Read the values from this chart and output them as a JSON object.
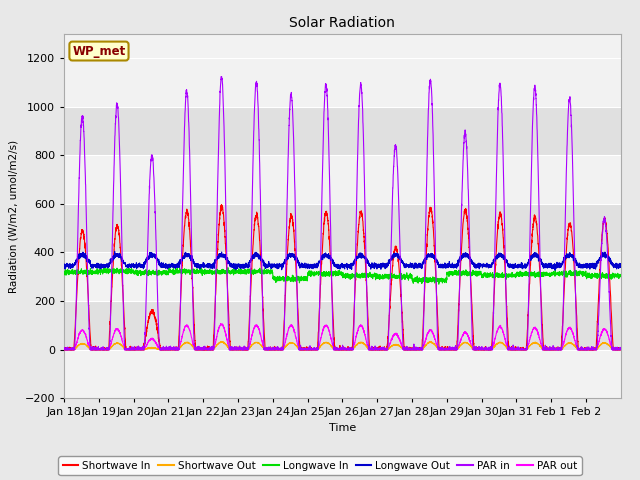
{
  "title": "Solar Radiation",
  "ylabel": "Radiation (W/m2, umol/m2/s)",
  "xlabel": "Time",
  "ylim": [
    -200,
    1300
  ],
  "n_days": 16,
  "pts_per_day": 288,
  "x_tick_labels": [
    "Jan 18",
    "Jan 19",
    "Jan 20",
    "Jan 21",
    "Jan 22",
    "Jan 23",
    "Jan 24",
    "Jan 25",
    "Jan 26",
    "Jan 27",
    "Jan 28",
    "Jan 29",
    "Jan 30",
    "Jan 31",
    "Feb 1",
    "Feb 2"
  ],
  "series": {
    "shortwave_in": {
      "color": "#ff0000",
      "label": "Shortwave In",
      "lw": 0.8
    },
    "shortwave_out": {
      "color": "#ffaa00",
      "label": "Shortwave Out",
      "lw": 0.8
    },
    "longwave_in": {
      "color": "#00dd00",
      "label": "Longwave In",
      "lw": 0.8
    },
    "longwave_out": {
      "color": "#0000cc",
      "label": "Longwave Out",
      "lw": 0.8
    },
    "par_in": {
      "color": "#aa00ff",
      "label": "PAR in",
      "lw": 0.8
    },
    "par_out": {
      "color": "#ff00ff",
      "label": "PAR out",
      "lw": 0.8
    }
  },
  "legend_label": "WP_met",
  "legend_bg": "#ffffcc",
  "legend_border": "#aa8800",
  "fig_bg": "#e8e8e8",
  "plot_bg_light": "#f2f2f2",
  "plot_bg_dark": "#e0e0e0",
  "grid_color": "#ffffff",
  "day_peaks": {
    "par_in": [
      960,
      1010,
      800,
      1060,
      1120,
      1100,
      1050,
      1090,
      1090,
      840,
      1110,
      890,
      1090,
      1080,
      1030,
      540
    ],
    "shortwave_in": [
      490,
      510,
      160,
      570,
      590,
      555,
      550,
      565,
      565,
      420,
      580,
      575,
      560,
      545,
      520,
      535
    ],
    "shortwave_out": [
      25,
      27,
      8,
      30,
      32,
      30,
      29,
      30,
      30,
      21,
      31,
      30,
      30,
      29,
      28,
      28
    ],
    "par_out": [
      80,
      85,
      45,
      100,
      105,
      100,
      100,
      100,
      100,
      65,
      80,
      70,
      95,
      90,
      90,
      85
    ]
  },
  "lw_out_night": 345,
  "lw_out_day_bump": 45,
  "lw_in_base": 310,
  "lw_in_range": [
    270,
    340
  ],
  "yticks": [
    -200,
    0,
    200,
    400,
    600,
    800,
    1000,
    1200
  ]
}
